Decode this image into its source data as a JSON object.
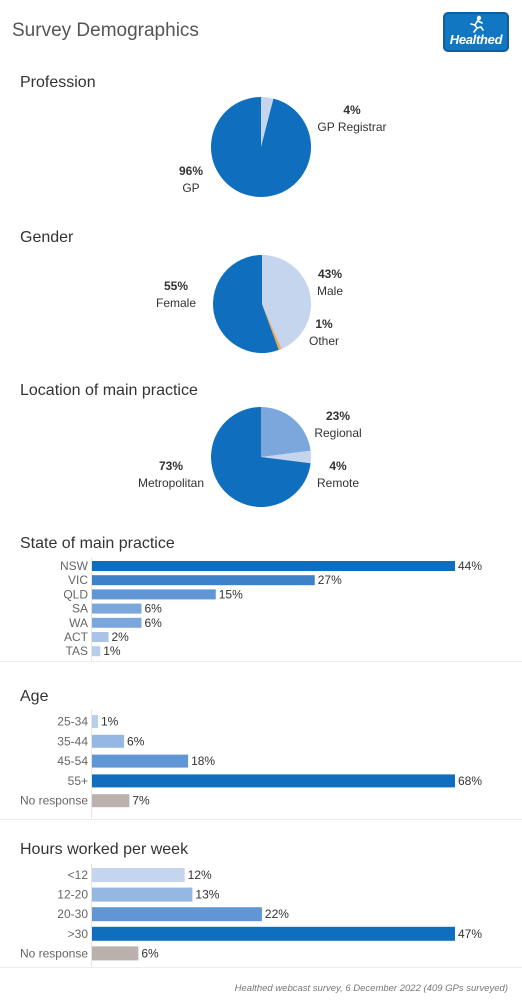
{
  "page": {
    "title": "Survey Demographics",
    "logo_text": "Healthed",
    "footer": "Healthed webcast survey, 6 December 2022 (409 GPs surveyed)"
  },
  "colors": {
    "dark": "#0f6fbe",
    "mid": "#5f96d3",
    "light": "#95b7e3",
    "pale": "#c5d5ee",
    "grey": "#bab1ac",
    "orange": "#f0a95e"
  },
  "chart_data": [
    {
      "type": "pie",
      "title": "Profession",
      "slices": [
        {
          "label": "GP Registrar",
          "value": 4,
          "pct_label": "4%",
          "color": "#c5d5ee"
        },
        {
          "label": "GP",
          "value": 96,
          "pct_label": "96%",
          "color": "#0f6fbe"
        }
      ]
    },
    {
      "type": "pie",
      "title": "Gender",
      "slices": [
        {
          "label": "Male",
          "value": 43,
          "pct_label": "43%",
          "color": "#c5d5ee"
        },
        {
          "label": "Other",
          "value": 1,
          "pct_label": "1%",
          "color": "#f0a95e"
        },
        {
          "label": "Female",
          "value": 55,
          "pct_label": "55%",
          "color": "#0f6fbe"
        }
      ]
    },
    {
      "type": "pie",
      "title": "Location of main practice",
      "slices": [
        {
          "label": "Regional",
          "value": 23,
          "pct_label": "23%",
          "color": "#7ba7dd"
        },
        {
          "label": "Remote",
          "value": 4,
          "pct_label": "4%",
          "color": "#c5d5ee"
        },
        {
          "label": "Metropolitan",
          "value": 73,
          "pct_label": "73%",
          "color": "#0f6fbe"
        }
      ]
    },
    {
      "type": "bar",
      "orientation": "horizontal",
      "title": "State of main practice",
      "categories": [
        "NSW",
        "VIC",
        "QLD",
        "SA",
        "WA",
        "ACT",
        "TAS"
      ],
      "values": [
        44,
        27,
        15,
        6,
        6,
        2,
        1
      ],
      "value_labels": [
        "44%",
        "27%",
        "15%",
        "6%",
        "6%",
        "2%",
        "1%"
      ],
      "colors": [
        "#0f6fbe",
        "#3c82c9",
        "#5f96d3",
        "#7ba7dd",
        "#7ba7dd",
        "#a9c4e8",
        "#b8cfec"
      ]
    },
    {
      "type": "bar",
      "orientation": "horizontal",
      "title": "Age",
      "categories": [
        "25-34",
        "35-44",
        "45-54",
        "55+",
        "No response"
      ],
      "values": [
        1,
        6,
        18,
        68,
        7
      ],
      "value_labels": [
        "1%",
        "6%",
        "18%",
        "68%",
        "7%"
      ],
      "colors": [
        "#b8cfec",
        "#95b7e3",
        "#5f96d3",
        "#0f6fbe",
        "#bab1ac"
      ]
    },
    {
      "type": "bar",
      "orientation": "horizontal",
      "title": "Hours worked per week",
      "categories": [
        "<12",
        "12-20",
        "20-30",
        ">30",
        "No response"
      ],
      "values": [
        12,
        13,
        22,
        47,
        6
      ],
      "value_labels": [
        "12%",
        "13%",
        "22%",
        "47%",
        "6%"
      ],
      "colors": [
        "#c5d5ee",
        "#95b7e3",
        "#5f96d3",
        "#0f6fbe",
        "#bab1ac"
      ]
    }
  ]
}
